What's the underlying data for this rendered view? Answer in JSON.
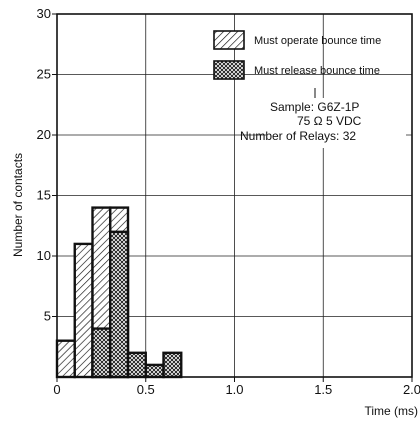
{
  "chart_data": {
    "type": "bar",
    "title": "",
    "xlabel": "Time (ms)",
    "ylabel": "Number of contacts",
    "xlim": [
      0,
      2.0
    ],
    "ylim": [
      0,
      30
    ],
    "x_ticks": [
      "0",
      "0.5",
      "1.0",
      "1.5",
      "2.0"
    ],
    "y_ticks": [
      "5",
      "10",
      "15",
      "20",
      "25",
      "30"
    ],
    "grid": true,
    "bin_width": 0.1,
    "series": [
      {
        "name": "Must operate bounce time",
        "pattern": "diagonal-hatch",
        "bins": [
          {
            "x0": 0.0,
            "x1": 0.1,
            "count": 3
          },
          {
            "x0": 0.1,
            "x1": 0.2,
            "count": 11
          },
          {
            "x0": 0.2,
            "x1": 0.3,
            "count": 14
          },
          {
            "x0": 0.3,
            "x1": 0.4,
            "count": 14
          }
        ]
      },
      {
        "name": "Must release bounce time",
        "pattern": "cross-hatch",
        "bins": [
          {
            "x0": 0.2,
            "x1": 0.3,
            "count": 4
          },
          {
            "x0": 0.3,
            "x1": 0.4,
            "count": 12
          },
          {
            "x0": 0.4,
            "x1": 0.5,
            "count": 2
          },
          {
            "x0": 0.5,
            "x1": 0.6,
            "count": 1
          },
          {
            "x0": 0.6,
            "x1": 0.7,
            "count": 2
          }
        ]
      }
    ],
    "annotation": {
      "lines": [
        "Sample: G6Z-1P",
        "75 Ω  5 VDC",
        "Number of Relays: 32"
      ]
    },
    "legend_position": "top-right"
  }
}
